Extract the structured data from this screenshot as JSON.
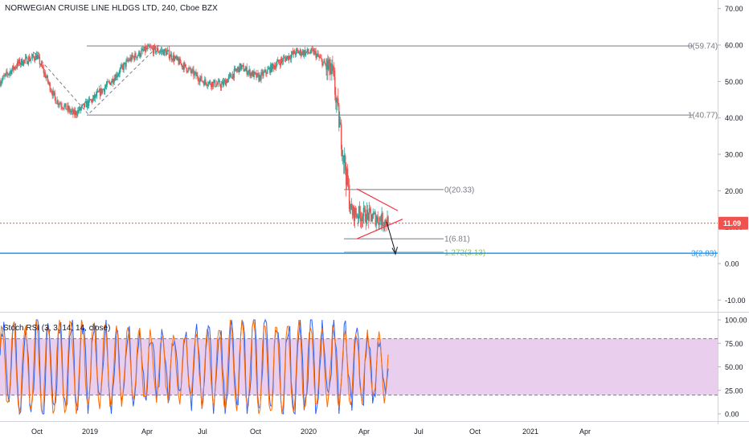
{
  "header": {
    "symbol_name": "NORWEGIAN CRUISE LINE HLDGS LTD",
    "interval": "240",
    "exchange": "Cboe BZX"
  },
  "colors": {
    "up": "#26a69a",
    "down": "#ef5350",
    "fib_line": "#787b86",
    "current_price": "#ef5350",
    "wedge": "#f23645",
    "target_line_green": "#8bc34a",
    "target_line_blue": "#2196f3",
    "rsi_band": "#e1bee7",
    "rsi_k": "#2962ff",
    "rsi_d": "#ff6d00"
  },
  "chart_data": [
    {
      "type": "line",
      "title": "NORWEGIAN CRUISE LINE HLDGS LTD, 240, Cboe BZX",
      "y_axis": {
        "ticks": [
          "70.00",
          "60.00",
          "50.00",
          "40.00",
          "30.00",
          "20.00",
          "10.00",
          "0.00",
          "-10.00"
        ],
        "ylim": [
          -12,
          72
        ]
      },
      "x_axis": {
        "ticks": [
          "Oct",
          "2019",
          "Apr",
          "Jul",
          "Oct",
          "2020",
          "Apr",
          "Jul",
          "Oct",
          "2021",
          "Apr"
        ]
      },
      "series": [
        {
          "x": [
            "2018-08",
            "2018-09",
            "2018-10",
            "2018-11",
            "2018-12",
            "2019-01",
            "2019-02",
            "2019-03",
            "2019-04",
            "2019-05",
            "2019-06",
            "2019-07",
            "2019-08",
            "2019-09",
            "2019-10",
            "2019-11",
            "2019-12",
            "2020-01",
            "2020-02",
            "2020-03",
            "2020-04",
            "2020-05"
          ],
          "values": [
            50,
            55,
            57,
            45,
            41,
            45,
            50,
            56,
            59,
            58,
            54,
            50,
            49,
            54,
            51,
            55,
            58,
            58,
            52,
            14,
            13,
            11.5
          ]
        }
      ],
      "price_label": "11.09",
      "annotations": [
        {
          "kind": "fib",
          "label": "0(59.74)",
          "value": 59.74
        },
        {
          "kind": "fib",
          "label": "1(40.77)",
          "value": 40.77
        },
        {
          "kind": "fib",
          "label": "0(20.33)",
          "value": 20.33
        },
        {
          "kind": "fib",
          "label": "1(6.81)",
          "value": 6.81
        },
        {
          "kind": "fib",
          "label": "1.272(3.13)",
          "value": 3.13
        },
        {
          "kind": "fib",
          "label": "3(2.83)",
          "value": 2.83
        }
      ],
      "grid": false
    },
    {
      "type": "line",
      "title": "Stoch RSI (3, 3, 14, 14, close)",
      "y_axis": {
        "ticks": [
          "100.00",
          "75.00",
          "50.00",
          "25.00",
          "0.00"
        ],
        "ylim": [
          -5,
          105
        ]
      },
      "band": [
        20,
        80
      ]
    }
  ]
}
